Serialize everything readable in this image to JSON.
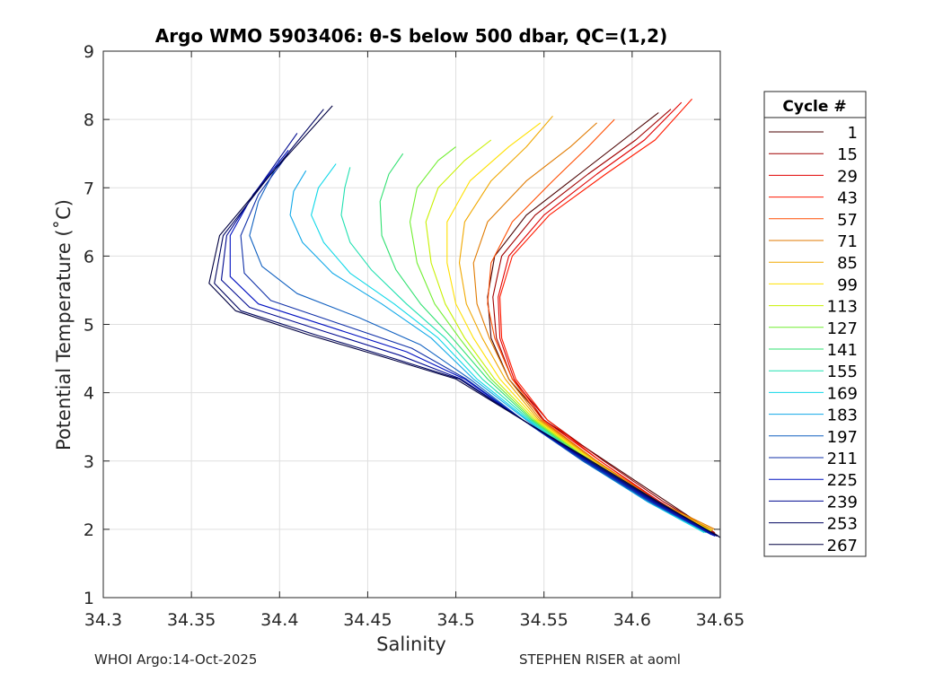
{
  "chart_data": {
    "type": "line",
    "title": "Argo WMO 5903406: θ-S below 500 dbar,  QC=(1,2)",
    "xlabel": "Salinity",
    "ylabel": "Potential Temperature (˚C)",
    "xlim": [
      34.3,
      34.65
    ],
    "ylim": [
      1,
      9
    ],
    "xticks": [
      34.3,
      34.35,
      34.4,
      34.45,
      34.5,
      34.55,
      34.6,
      34.65
    ],
    "xtick_labels": [
      "34.3",
      "34.35",
      "34.4",
      "34.45",
      "34.5",
      "34.55",
      "34.6",
      "34.65"
    ],
    "yticks": [
      1,
      2,
      3,
      4,
      5,
      6,
      7,
      8,
      9
    ],
    "ytick_labels": [
      "1",
      "2",
      "3",
      "4",
      "5",
      "6",
      "7",
      "8",
      "9"
    ],
    "grid": true,
    "legend": {
      "title": "Cycle #",
      "placement": "right-outside",
      "entries": [
        {
          "label": "1",
          "color": "#4a0000"
        },
        {
          "label": "15",
          "color": "#a00000"
        },
        {
          "label": "29",
          "color": "#e00000"
        },
        {
          "label": "43",
          "color": "#ff1a00"
        },
        {
          "label": "57",
          "color": "#ff4d00"
        },
        {
          "label": "71",
          "color": "#e07a00"
        },
        {
          "label": "85",
          "color": "#f0a800"
        },
        {
          "label": "99",
          "color": "#ffe000"
        },
        {
          "label": "113",
          "color": "#c8f000"
        },
        {
          "label": "127",
          "color": "#70ee30"
        },
        {
          "label": "141",
          "color": "#30e070"
        },
        {
          "label": "155",
          "color": "#20e0b0"
        },
        {
          "label": "169",
          "color": "#10d8e8"
        },
        {
          "label": "183",
          "color": "#10a8e8"
        },
        {
          "label": "197",
          "color": "#1060c0"
        },
        {
          "label": "211",
          "color": "#1030a8"
        },
        {
          "label": "225",
          "color": "#0010c0"
        },
        {
          "label": "239",
          "color": "#000a90"
        },
        {
          "label": "253",
          "color": "#000560"
        },
        {
          "label": "267",
          "color": "#000040"
        }
      ]
    },
    "series": [
      {
        "name": "1",
        "color": "#4a0000",
        "x": [
          34.649,
          34.62,
          34.585,
          34.55,
          34.53,
          34.52,
          34.518,
          34.522,
          34.54,
          34.57,
          34.595,
          34.615
        ],
        "y": [
          1.9,
          2.4,
          3.0,
          3.6,
          4.2,
          4.8,
          5.4,
          6.0,
          6.6,
          7.2,
          7.7,
          8.1
        ]
      },
      {
        "name": "15",
        "color": "#a00000",
        "x": [
          34.647,
          34.618,
          34.584,
          34.552,
          34.532,
          34.523,
          34.521,
          34.526,
          34.545,
          34.575,
          34.602,
          34.622
        ],
        "y": [
          1.95,
          2.4,
          3.0,
          3.6,
          4.2,
          4.8,
          5.4,
          6.0,
          6.6,
          7.2,
          7.7,
          8.15
        ]
      },
      {
        "name": "29",
        "color": "#e00000",
        "x": [
          34.646,
          34.616,
          34.582,
          34.55,
          34.533,
          34.525,
          34.524,
          34.53,
          34.55,
          34.58,
          34.607,
          34.628
        ],
        "y": [
          1.95,
          2.4,
          3.0,
          3.6,
          4.2,
          4.8,
          5.4,
          6.0,
          6.6,
          7.2,
          7.7,
          8.25
        ]
      },
      {
        "name": "43",
        "color": "#ff1a00",
        "x": [
          34.645,
          34.615,
          34.582,
          34.552,
          34.534,
          34.526,
          34.525,
          34.532,
          34.553,
          34.585,
          34.613,
          34.634
        ],
        "y": [
          1.97,
          2.4,
          3.0,
          3.6,
          4.2,
          4.8,
          5.4,
          6.0,
          6.6,
          7.2,
          7.7,
          8.3
        ]
      },
      {
        "name": "57",
        "color": "#ff4d00",
        "x": [
          34.645,
          34.614,
          34.58,
          34.549,
          34.532,
          34.522,
          34.518,
          34.52,
          34.532,
          34.555,
          34.575,
          34.59
        ],
        "y": [
          1.98,
          2.4,
          3.0,
          3.6,
          4.2,
          4.8,
          5.3,
          5.9,
          6.5,
          7.1,
          7.6,
          8.0
        ]
      },
      {
        "name": "71",
        "color": "#e07a00",
        "x": [
          34.647,
          34.615,
          34.58,
          34.548,
          34.53,
          34.519,
          34.512,
          34.51,
          34.518,
          34.54,
          34.565,
          34.58
        ],
        "y": [
          2.0,
          2.4,
          3.0,
          3.6,
          4.2,
          4.8,
          5.3,
          5.9,
          6.5,
          7.1,
          7.6,
          7.95
        ]
      },
      {
        "name": "85",
        "color": "#f0a800",
        "x": [
          34.646,
          34.614,
          34.579,
          34.547,
          34.528,
          34.515,
          34.506,
          34.502,
          34.505,
          34.52,
          34.54,
          34.555
        ],
        "y": [
          1.99,
          2.4,
          3.0,
          3.6,
          4.2,
          4.8,
          5.3,
          5.9,
          6.5,
          7.1,
          7.6,
          8.05
        ]
      },
      {
        "name": "99",
        "color": "#ffe000",
        "x": [
          34.645,
          34.613,
          34.578,
          34.546,
          34.525,
          34.51,
          34.5,
          34.495,
          34.495,
          34.508,
          34.53,
          34.548
        ],
        "y": [
          1.98,
          2.4,
          3.0,
          3.6,
          4.2,
          4.8,
          5.3,
          5.9,
          6.5,
          7.1,
          7.6,
          7.95
        ]
      },
      {
        "name": "113",
        "color": "#c8f000",
        "x": [
          34.645,
          34.612,
          34.577,
          34.545,
          34.522,
          34.505,
          34.494,
          34.486,
          34.483,
          34.49,
          34.505,
          34.52
        ],
        "y": [
          1.97,
          2.4,
          3.0,
          3.6,
          4.2,
          4.8,
          5.3,
          5.9,
          6.5,
          7.0,
          7.4,
          7.7
        ]
      },
      {
        "name": "127",
        "color": "#70ee30",
        "x": [
          34.644,
          34.612,
          34.576,
          34.544,
          34.52,
          34.502,
          34.488,
          34.478,
          34.474,
          34.478,
          34.49,
          34.5
        ],
        "y": [
          1.97,
          2.4,
          3.0,
          3.6,
          4.2,
          4.8,
          5.3,
          5.9,
          6.5,
          7.0,
          7.4,
          7.6
        ]
      },
      {
        "name": "141",
        "color": "#30e070",
        "x": [
          34.643,
          34.611,
          34.575,
          34.543,
          34.518,
          34.498,
          34.48,
          34.466,
          34.458,
          34.457,
          34.462,
          34.47
        ],
        "y": [
          1.96,
          2.4,
          3.0,
          3.6,
          4.2,
          4.8,
          5.3,
          5.8,
          6.3,
          6.8,
          7.2,
          7.5
        ]
      },
      {
        "name": "155",
        "color": "#20e0b0",
        "x": [
          34.642,
          34.61,
          34.574,
          34.542,
          34.515,
          34.494,
          34.472,
          34.452,
          34.44,
          34.435,
          34.437,
          34.44
        ],
        "y": [
          1.95,
          2.4,
          3.0,
          3.6,
          4.2,
          4.8,
          5.3,
          5.8,
          6.2,
          6.6,
          7.0,
          7.3
        ]
      },
      {
        "name": "169",
        "color": "#10d8e8",
        "x": [
          34.641,
          34.609,
          34.573,
          34.541,
          34.512,
          34.49,
          34.465,
          34.44,
          34.425,
          34.418,
          34.422,
          34.432
        ],
        "y": [
          1.95,
          2.4,
          3.0,
          3.6,
          4.2,
          4.8,
          5.3,
          5.75,
          6.2,
          6.6,
          7.0,
          7.35
        ]
      },
      {
        "name": "183",
        "color": "#10a8e8",
        "x": [
          34.642,
          34.609,
          34.572,
          34.54,
          34.51,
          34.486,
          34.458,
          34.43,
          34.413,
          34.406,
          34.408,
          34.415
        ],
        "y": [
          1.96,
          2.4,
          3.0,
          3.6,
          4.2,
          4.8,
          5.3,
          5.75,
          6.2,
          6.6,
          6.95,
          7.25
        ]
      },
      {
        "name": "197",
        "color": "#1060c0",
        "x": [
          34.645,
          34.61,
          34.572,
          34.538,
          34.508,
          34.48,
          34.445,
          34.41,
          34.39,
          34.383,
          34.388,
          34.4
        ],
        "y": [
          1.92,
          2.4,
          3.0,
          3.6,
          4.2,
          4.7,
          5.1,
          5.45,
          5.85,
          6.3,
          6.8,
          7.4
        ]
      },
      {
        "name": "211",
        "color": "#1030a8",
        "x": [
          34.646,
          34.611,
          34.573,
          34.538,
          34.506,
          34.475,
          34.435,
          34.395,
          34.38,
          34.378,
          34.388,
          34.405
        ],
        "y": [
          1.91,
          2.4,
          3.0,
          3.6,
          4.2,
          4.65,
          5.0,
          5.35,
          5.75,
          6.3,
          6.9,
          7.5
        ]
      },
      {
        "name": "225",
        "color": "#0010c0",
        "x": [
          34.647,
          34.612,
          34.574,
          34.538,
          34.505,
          34.472,
          34.43,
          34.388,
          34.372,
          34.372,
          34.385,
          34.405
        ],
        "y": [
          1.9,
          2.4,
          3.0,
          3.6,
          4.2,
          4.6,
          4.95,
          5.3,
          5.7,
          6.3,
          6.9,
          7.55
        ]
      },
      {
        "name": "239",
        "color": "#000a90",
        "x": [
          34.648,
          34.613,
          34.575,
          34.538,
          34.503,
          34.468,
          34.425,
          34.383,
          34.367,
          34.37,
          34.388,
          34.41
        ],
        "y": [
          1.9,
          2.4,
          3.0,
          3.6,
          4.2,
          4.55,
          4.9,
          5.25,
          5.65,
          6.3,
          7.0,
          7.8
        ]
      },
      {
        "name": "253",
        "color": "#000560",
        "x": [
          34.649,
          34.614,
          34.576,
          34.538,
          34.502,
          34.465,
          34.42,
          34.378,
          34.363,
          34.368,
          34.392,
          34.425
        ],
        "y": [
          1.9,
          2.4,
          3.0,
          3.6,
          4.2,
          4.5,
          4.85,
          5.2,
          5.6,
          6.3,
          7.1,
          8.15
        ]
      },
      {
        "name": "267",
        "color": "#000040",
        "x": [
          34.65,
          34.615,
          34.577,
          34.538,
          34.5,
          34.462,
          34.416,
          34.375,
          34.36,
          34.366,
          34.395,
          34.43
        ],
        "y": [
          1.88,
          2.4,
          3.0,
          3.6,
          4.2,
          4.5,
          4.85,
          5.2,
          5.6,
          6.3,
          7.2,
          8.2
        ]
      }
    ]
  },
  "footer": {
    "left": "WHOI Argo:14-Oct-2025",
    "right": "STEPHEN RISER at aoml"
  }
}
